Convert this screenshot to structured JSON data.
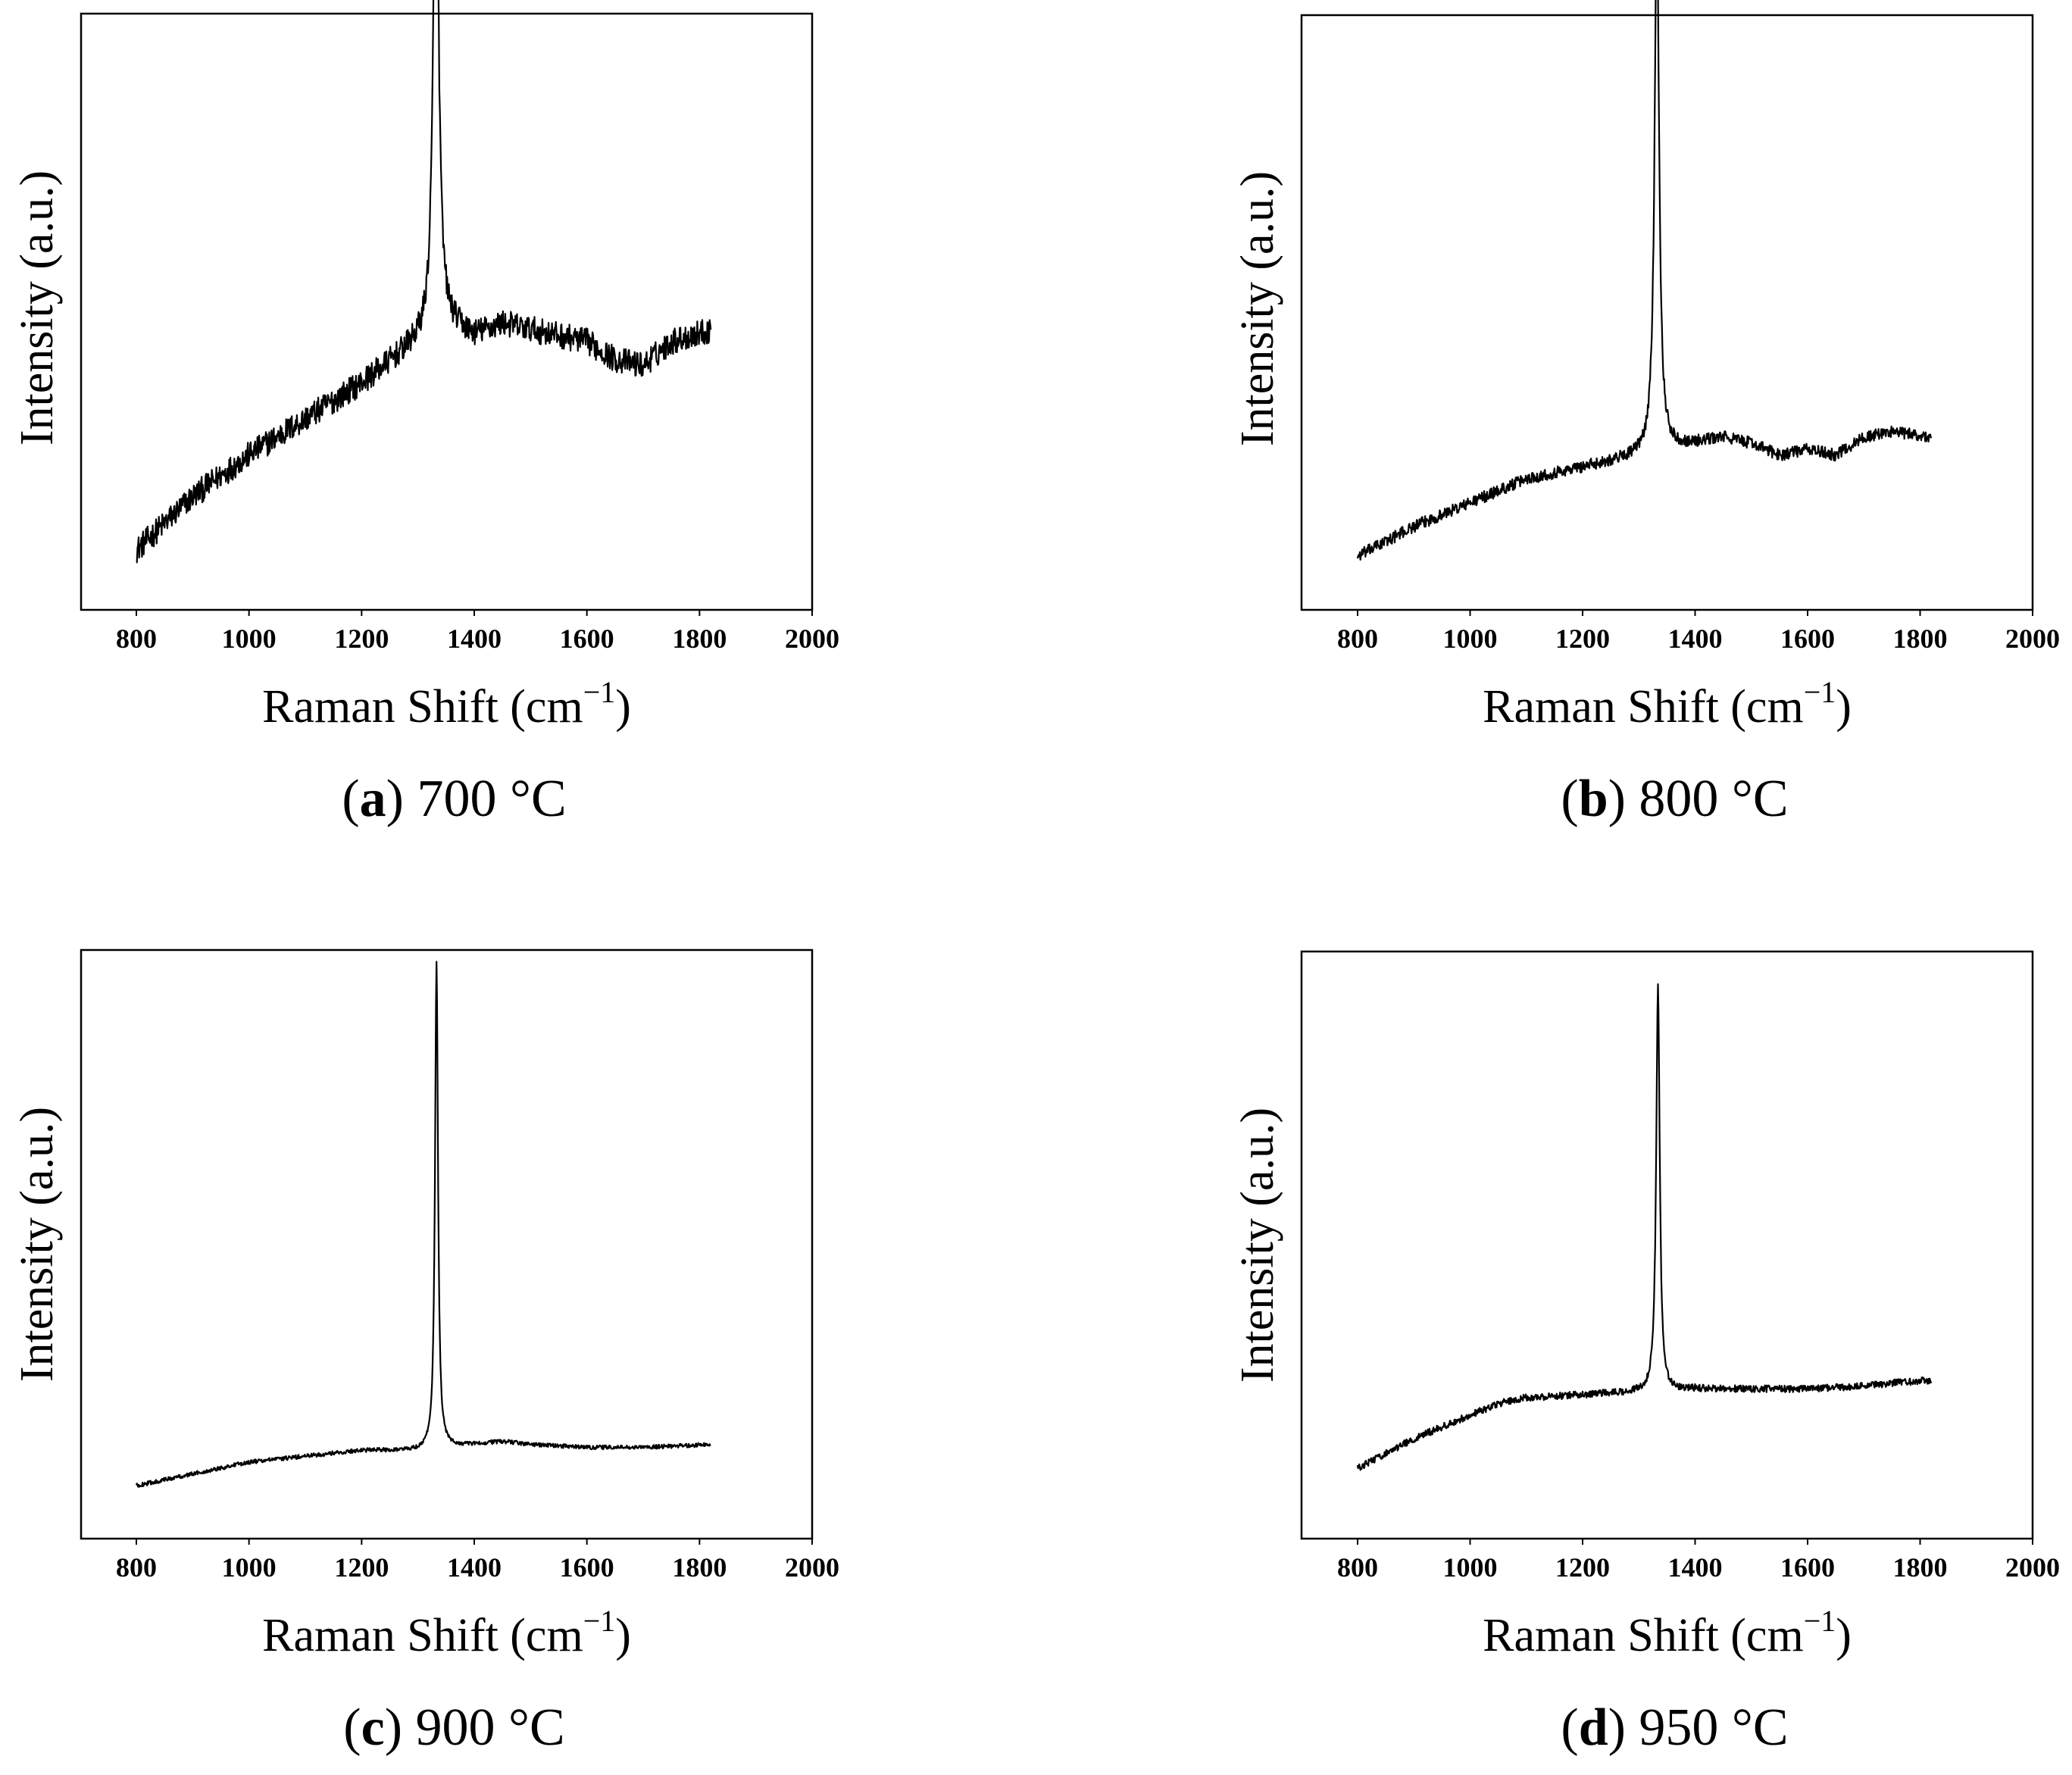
{
  "chart_data": [
    {
      "type": "line",
      "panel_label": "a",
      "caption": "700 °C",
      "xlabel": "Raman Shift (cm",
      "xlabel_sup": "−1",
      "xlabel_end": ")",
      "ylabel": "Intensity (a.u.)",
      "xlim": [
        700,
        2000
      ],
      "xticks": [
        "800",
        "1000",
        "1200",
        "1400",
        "1600",
        "1800",
        "2000"
      ],
      "ylim": [
        0,
        100
      ],
      "peak": {
        "x": 1332,
        "height": 91,
        "width": 5.5
      },
      "noise": 2.2,
      "baseline": [
        [
          800,
          10
        ],
        [
          900,
          19
        ],
        [
          1000,
          26
        ],
        [
          1100,
          32
        ],
        [
          1200,
          38
        ],
        [
          1300,
          45
        ],
        [
          1340,
          48
        ],
        [
          1350,
          48
        ],
        [
          1400,
          46
        ],
        [
          1450,
          48
        ],
        [
          1500,
          47
        ],
        [
          1550,
          46
        ],
        [
          1600,
          45
        ],
        [
          1650,
          42
        ],
        [
          1700,
          41
        ],
        [
          1750,
          45
        ],
        [
          1820,
          47
        ]
      ]
    },
    {
      "type": "line",
      "panel_label": "b",
      "caption": "800 °C",
      "xlabel": "Raman Shift (cm",
      "xlabel_sup": "−1",
      "xlabel_end": ")",
      "ylabel": "Intensity (a.u.)",
      "xlim": [
        700,
        2000
      ],
      "xticks": [
        "800",
        "1000",
        "1200",
        "1400",
        "1600",
        "1800",
        "2000"
      ],
      "ylim": [
        0,
        100
      ],
      "peak": {
        "x": 1332,
        "height": 91,
        "width": 4.8
      },
      "noise": 1.0,
      "baseline": [
        [
          800,
          9
        ],
        [
          900,
          14
        ],
        [
          1000,
          18
        ],
        [
          1100,
          22
        ],
        [
          1200,
          24
        ],
        [
          1300,
          26
        ],
        [
          1340,
          27
        ],
        [
          1400,
          28
        ],
        [
          1450,
          29
        ],
        [
          1500,
          28
        ],
        [
          1550,
          26
        ],
        [
          1600,
          27
        ],
        [
          1650,
          26
        ],
        [
          1700,
          29
        ],
        [
          1750,
          30
        ],
        [
          1820,
          29
        ]
      ]
    },
    {
      "type": "line",
      "panel_label": "c",
      "caption": "900 °C",
      "xlabel": "Raman Shift (cm",
      "xlabel_sup": "−1",
      "xlabel_end": ")",
      "ylabel": "Intensity (a.u.)",
      "xlim": [
        700,
        2000
      ],
      "xticks": [
        "800",
        "1000",
        "1200",
        "1400",
        "1600",
        "1800",
        "2000"
      ],
      "ylim": [
        0,
        100
      ],
      "peak": {
        "x": 1333,
        "height": 83,
        "width": 3.2
      },
      "noise": 0.35,
      "baseline": [
        [
          800,
          9
        ],
        [
          900,
          11
        ],
        [
          1000,
          13
        ],
        [
          1100,
          14
        ],
        [
          1200,
          15
        ],
        [
          1300,
          15
        ],
        [
          1400,
          16
        ],
        [
          1450,
          16.5
        ],
        [
          1500,
          16
        ],
        [
          1600,
          15.5
        ],
        [
          1700,
          15.5
        ],
        [
          1820,
          16
        ]
      ]
    },
    {
      "type": "line",
      "panel_label": "d",
      "caption": "950 °C",
      "xlabel": "Raman Shift (cm",
      "xlabel_sup": "−1",
      "xlabel_end": ")",
      "ylabel": "Intensity (a.u.)",
      "xlim": [
        700,
        2000
      ],
      "xticks": [
        "800",
        "1000",
        "1200",
        "1400",
        "1600",
        "1800",
        "2000"
      ],
      "ylim": [
        0,
        100
      ],
      "peak": {
        "x": 1334,
        "height": 69,
        "width": 3.8
      },
      "noise": 0.6,
      "baseline": [
        [
          800,
          12
        ],
        [
          900,
          17
        ],
        [
          1000,
          21
        ],
        [
          1050,
          23
        ],
        [
          1100,
          24
        ],
        [
          1200,
          24.5
        ],
        [
          1300,
          25
        ],
        [
          1350,
          25
        ],
        [
          1400,
          25.5
        ],
        [
          1500,
          25.5
        ],
        [
          1600,
          25.5
        ],
        [
          1700,
          26
        ],
        [
          1750,
          26.5
        ],
        [
          1820,
          27
        ]
      ]
    }
  ]
}
